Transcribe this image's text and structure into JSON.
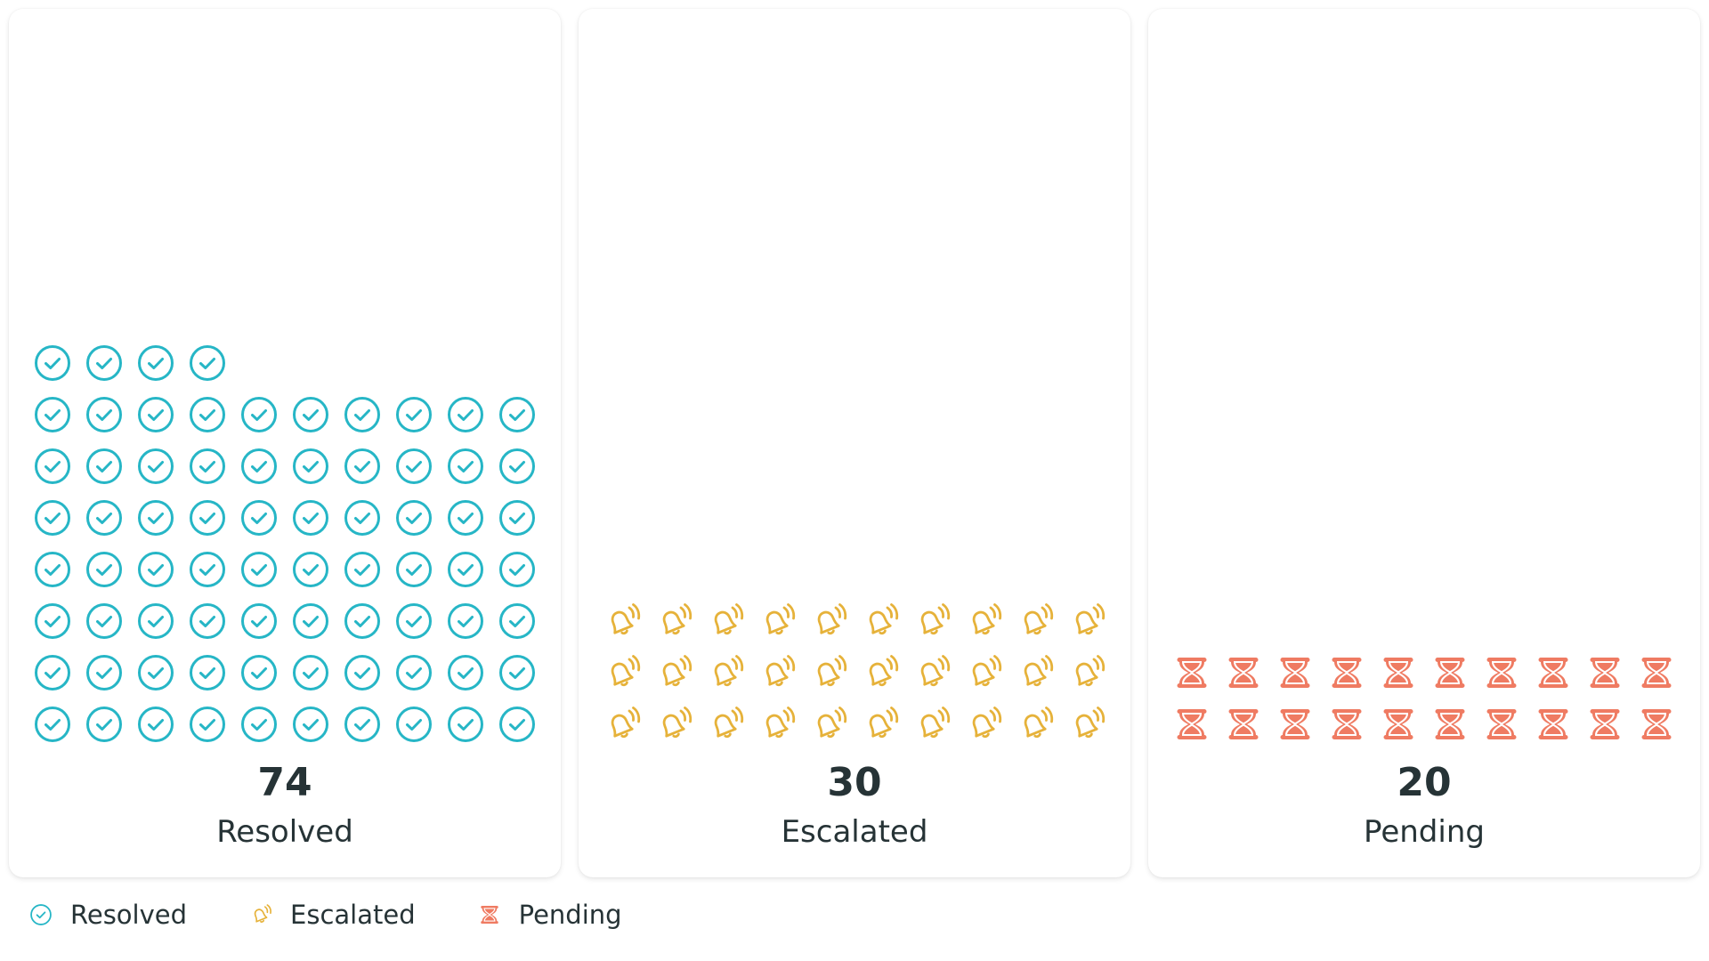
{
  "colors": {
    "resolved": "#26B6C6",
    "escalated": "#E6B23A",
    "pending": "#EF7B62",
    "text": "#263336"
  },
  "cards": [
    {
      "key": "resolved",
      "value": "74",
      "label": "Resolved",
      "icon": "check-circle-icon"
    },
    {
      "key": "escalated",
      "value": "30",
      "label": "Escalated",
      "icon": "bell-ringing-icon"
    },
    {
      "key": "pending",
      "value": "20",
      "label": "Pending",
      "icon": "hourglass-icon"
    }
  ],
  "legend": [
    {
      "key": "resolved",
      "label": "Resolved",
      "icon": "check-circle-icon"
    },
    {
      "key": "escalated",
      "label": "Escalated",
      "icon": "bell-ringing-icon"
    },
    {
      "key": "pending",
      "label": "Pending",
      "icon": "hourglass-icon"
    }
  ],
  "chart_data": {
    "type": "pictogram",
    "title": "",
    "categories": [
      "Resolved",
      "Escalated",
      "Pending"
    ],
    "values": [
      74,
      30,
      20
    ],
    "units_per_icon": 1,
    "icons_per_row": 10,
    "icons": [
      "check-circle",
      "bell-ringing",
      "hourglass"
    ],
    "colors": [
      "#26B6C6",
      "#E6B23A",
      "#EF7B62"
    ],
    "legend_position": "bottom-left"
  }
}
